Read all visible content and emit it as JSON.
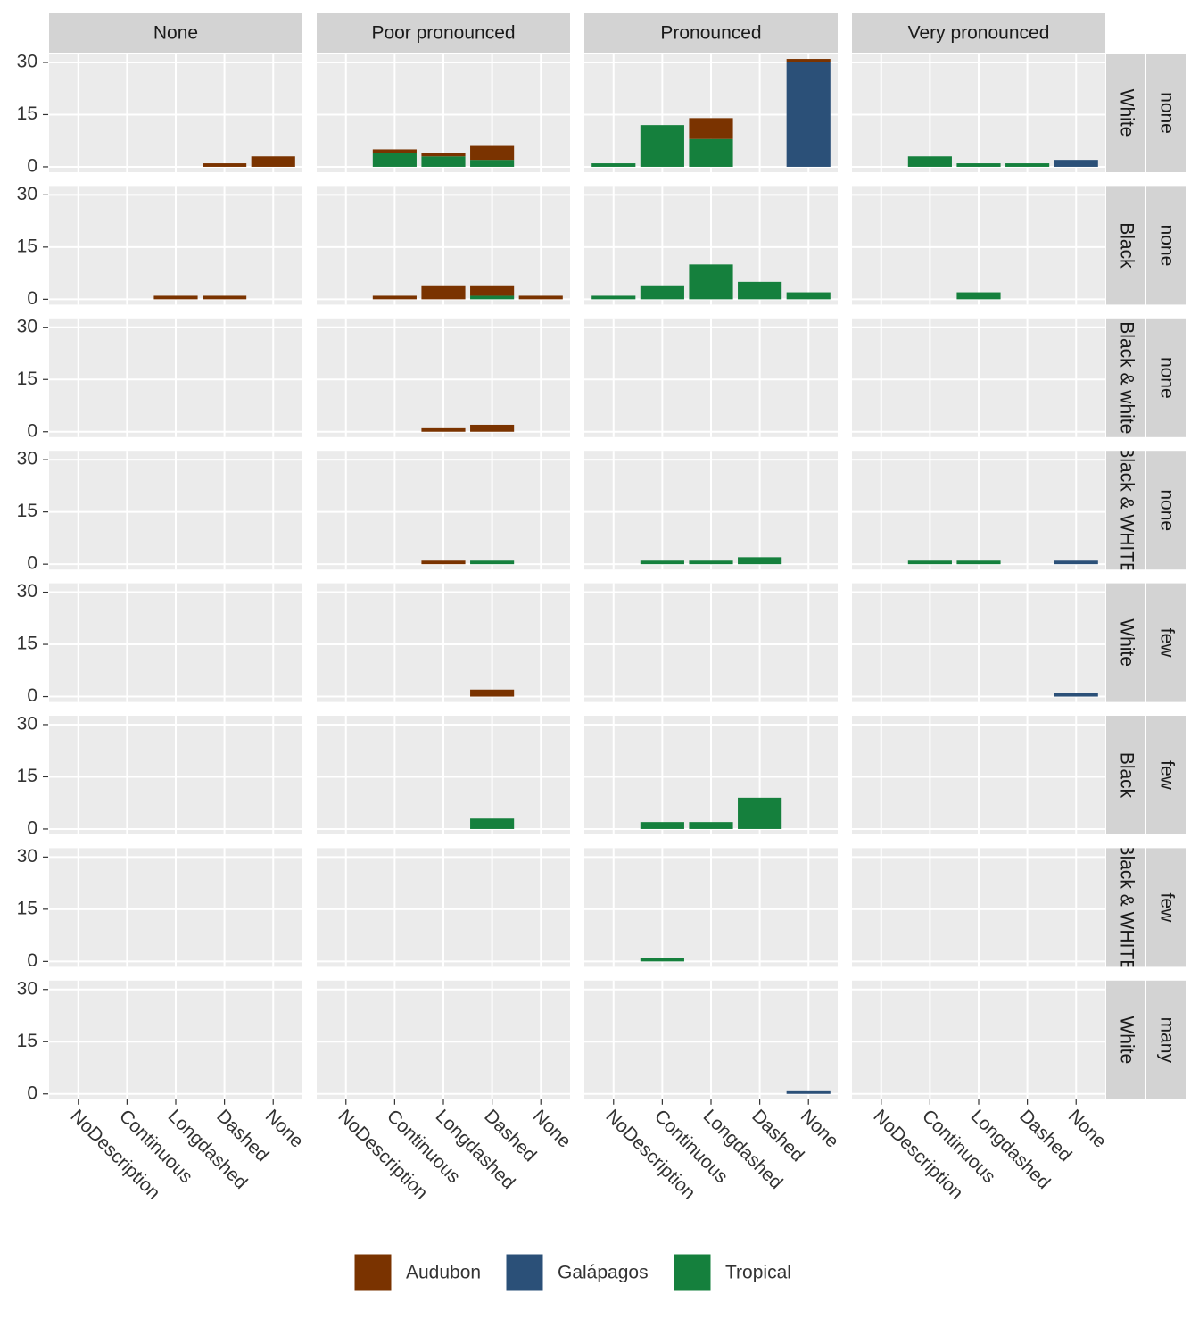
{
  "chart_data": {
    "type": "bar",
    "facet_cols": [
      "None",
      "Poor pronounced",
      "Pronounced",
      "Very pronounced"
    ],
    "facet_rows": [
      {
        "inner": "White",
        "outer": "none"
      },
      {
        "inner": "Black",
        "outer": "none"
      },
      {
        "inner": "Black & white",
        "outer": "none"
      },
      {
        "inner": "Black & WHITE",
        "outer": "none"
      },
      {
        "inner": "White",
        "outer": "few"
      },
      {
        "inner": "Black",
        "outer": "few"
      },
      {
        "inner": "Black & WHITE",
        "outer": "few"
      },
      {
        "inner": "White",
        "outer": "many"
      }
    ],
    "categories": [
      "NoDescription",
      "Continuous",
      "Longdashed",
      "Dashed",
      "None"
    ],
    "ylim": [
      -1.55,
      32.55
    ],
    "yticks": [
      0,
      15,
      30
    ],
    "grid": true,
    "stacked": true,
    "legend": "bottom",
    "series": [
      {
        "name": "Audubon",
        "color": "#7a3300",
        "values": [
          [
            [
              0,
              0,
              0,
              1,
              3
            ],
            [
              0,
              1,
              1,
              4,
              0
            ],
            [
              0,
              0,
              6,
              0,
              1
            ],
            [
              0,
              0,
              0,
              0,
              0
            ]
          ],
          [
            [
              0,
              0,
              1,
              1,
              0
            ],
            [
              0,
              1,
              4,
              3,
              1
            ],
            [
              0,
              0,
              0,
              0,
              0
            ],
            [
              0,
              0,
              0,
              0,
              0
            ]
          ],
          [
            [
              0,
              0,
              0,
              0,
              0
            ],
            [
              0,
              0,
              1,
              2,
              0
            ],
            [
              0,
              0,
              0,
              0,
              0
            ],
            [
              0,
              0,
              0,
              0,
              0
            ]
          ],
          [
            [
              0,
              0,
              0,
              0,
              0
            ],
            [
              0,
              0,
              1,
              0,
              0
            ],
            [
              0,
              0,
              0,
              0,
              0
            ],
            [
              0,
              0,
              0,
              0,
              0
            ]
          ],
          [
            [
              0,
              0,
              0,
              0,
              0
            ],
            [
              0,
              0,
              0,
              2,
              0
            ],
            [
              0,
              0,
              0,
              0,
              0
            ],
            [
              0,
              0,
              0,
              0,
              0
            ]
          ],
          [
            [
              0,
              0,
              0,
              0,
              0
            ],
            [
              0,
              0,
              0,
              0,
              0
            ],
            [
              0,
              0,
              0,
              0,
              0
            ],
            [
              0,
              0,
              0,
              0,
              0
            ]
          ],
          [
            [
              0,
              0,
              0,
              0,
              0
            ],
            [
              0,
              0,
              0,
              0,
              0
            ],
            [
              0,
              0,
              0,
              0,
              0
            ],
            [
              0,
              0,
              0,
              0,
              0
            ]
          ],
          [
            [
              0,
              0,
              0,
              0,
              0
            ],
            [
              0,
              0,
              0,
              0,
              0
            ],
            [
              0,
              0,
              0,
              0,
              0
            ],
            [
              0,
              0,
              0,
              0,
              0
            ]
          ]
        ]
      },
      {
        "name": "Galápagos",
        "color": "#2b5078",
        "values": [
          [
            [
              0,
              0,
              0,
              0,
              0
            ],
            [
              0,
              0,
              0,
              0,
              0
            ],
            [
              0,
              0,
              0,
              0,
              30
            ],
            [
              0,
              0,
              0,
              0,
              2
            ]
          ],
          [
            [
              0,
              0,
              0,
              0,
              0
            ],
            [
              0,
              0,
              0,
              0,
              0
            ],
            [
              0,
              0,
              0,
              0,
              0
            ],
            [
              0,
              0,
              0,
              0,
              0
            ]
          ],
          [
            [
              0,
              0,
              0,
              0,
              0
            ],
            [
              0,
              0,
              0,
              0,
              0
            ],
            [
              0,
              0,
              0,
              0,
              0
            ],
            [
              0,
              0,
              0,
              0,
              0
            ]
          ],
          [
            [
              0,
              0,
              0,
              0,
              0
            ],
            [
              0,
              0,
              0,
              0,
              0
            ],
            [
              0,
              0,
              0,
              0,
              0
            ],
            [
              0,
              0,
              0,
              0,
              1
            ]
          ],
          [
            [
              0,
              0,
              0,
              0,
              0
            ],
            [
              0,
              0,
              0,
              0,
              0
            ],
            [
              0,
              0,
              0,
              0,
              0
            ],
            [
              0,
              0,
              0,
              0,
              1
            ]
          ],
          [
            [
              0,
              0,
              0,
              0,
              0
            ],
            [
              0,
              0,
              0,
              0,
              0
            ],
            [
              0,
              0,
              0,
              0,
              0
            ],
            [
              0,
              0,
              0,
              0,
              0
            ]
          ],
          [
            [
              0,
              0,
              0,
              0,
              0
            ],
            [
              0,
              0,
              0,
              0,
              0
            ],
            [
              0,
              0,
              0,
              0,
              0
            ],
            [
              0,
              0,
              0,
              0,
              0
            ]
          ],
          [
            [
              0,
              0,
              0,
              0,
              0
            ],
            [
              0,
              0,
              0,
              0,
              0
            ],
            [
              0,
              0,
              0,
              0,
              1
            ],
            [
              0,
              0,
              0,
              0,
              0
            ]
          ]
        ]
      },
      {
        "name": "Tropical",
        "color": "#15803d",
        "values": [
          [
            [
              0,
              0,
              0,
              0,
              0
            ],
            [
              0,
              4,
              3,
              2,
              0
            ],
            [
              1,
              12,
              8,
              0,
              0
            ],
            [
              0,
              3,
              1,
              1,
              0
            ]
          ],
          [
            [
              0,
              0,
              0,
              0,
              0
            ],
            [
              0,
              0,
              0,
              1,
              0
            ],
            [
              1,
              4,
              10,
              5,
              2
            ],
            [
              0,
              0,
              2,
              0,
              0
            ]
          ],
          [
            [
              0,
              0,
              0,
              0,
              0
            ],
            [
              0,
              0,
              0,
              0,
              0
            ],
            [
              0,
              0,
              0,
              0,
              0
            ],
            [
              0,
              0,
              0,
              0,
              0
            ]
          ],
          [
            [
              0,
              0,
              0,
              0,
              0
            ],
            [
              0,
              0,
              0,
              1,
              0
            ],
            [
              0,
              1,
              1,
              2,
              0
            ],
            [
              0,
              1,
              1,
              0,
              0
            ]
          ],
          [
            [
              0,
              0,
              0,
              0,
              0
            ],
            [
              0,
              0,
              0,
              0,
              0
            ],
            [
              0,
              0,
              0,
              0,
              0
            ],
            [
              0,
              0,
              0,
              0,
              0
            ]
          ],
          [
            [
              0,
              0,
              0,
              0,
              0
            ],
            [
              0,
              0,
              0,
              3,
              0
            ],
            [
              0,
              2,
              2,
              9,
              0
            ],
            [
              0,
              0,
              0,
              0,
              0
            ]
          ],
          [
            [
              0,
              0,
              0,
              0,
              0
            ],
            [
              0,
              0,
              0,
              0,
              0
            ],
            [
              0,
              1,
              0,
              0,
              0
            ],
            [
              0,
              0,
              0,
              0,
              0
            ]
          ],
          [
            [
              0,
              0,
              0,
              0,
              0
            ],
            [
              0,
              0,
              0,
              0,
              0
            ],
            [
              0,
              0,
              0,
              0,
              0
            ],
            [
              0,
              0,
              0,
              0,
              0
            ]
          ]
        ]
      }
    ]
  }
}
